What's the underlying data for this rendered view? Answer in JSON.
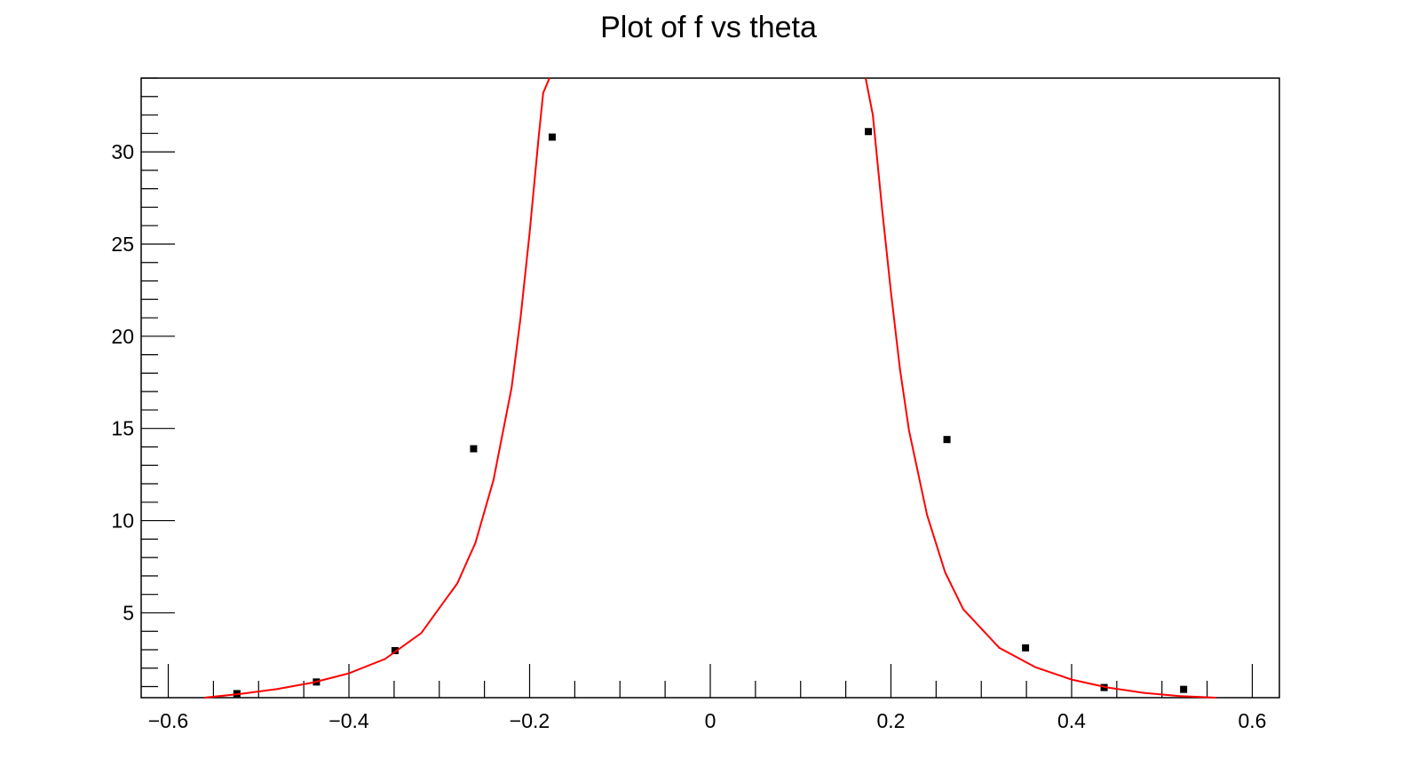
{
  "chart_data": {
    "type": "scatter",
    "title": "Plot of f vs theta",
    "xlabel": "",
    "ylabel": "",
    "xlim": [
      -0.63,
      0.63
    ],
    "ylim": [
      0.4,
      34.0
    ],
    "grid": false,
    "legend": "none",
    "x_ticks": [
      {
        "value": -0.6,
        "label": "−0.6"
      },
      {
        "value": -0.4,
        "label": "−0.4"
      },
      {
        "value": -0.2,
        "label": "−0.2"
      },
      {
        "value": 0,
        "label": "0"
      },
      {
        "value": 0.2,
        "label": "0.2"
      },
      {
        "value": 0.4,
        "label": "0.4"
      },
      {
        "value": 0.6,
        "label": "0.6"
      }
    ],
    "y_ticks": [
      {
        "value": 5,
        "label": "5"
      },
      {
        "value": 10,
        "label": "10"
      },
      {
        "value": 15,
        "label": "15"
      },
      {
        "value": 20,
        "label": "20"
      },
      {
        "value": 25,
        "label": "25"
      },
      {
        "value": 30,
        "label": "30"
      }
    ],
    "series": [
      {
        "kind": "points",
        "color": "#000000",
        "x": [
          -0.524,
          -0.436,
          -0.349,
          -0.262,
          -0.175,
          0.175,
          0.262,
          0.349,
          0.436,
          0.524
        ],
        "y": [
          0.62,
          1.25,
          2.95,
          13.9,
          30.8,
          31.1,
          14.4,
          3.1,
          0.95,
          0.85
        ]
      },
      {
        "kind": "fit-curve",
        "color": "#ff0000",
        "x": [
          -0.56,
          -0.52,
          -0.48,
          -0.44,
          -0.4,
          -0.36,
          -0.32,
          -0.28,
          -0.26,
          -0.24,
          -0.22,
          -0.21,
          -0.2,
          -0.19,
          -0.185,
          -0.178,
          0.172,
          0.18,
          0.19,
          0.2,
          0.21,
          0.22,
          0.24,
          0.26,
          0.28,
          0.32,
          0.36,
          0.4,
          0.44,
          0.48,
          0.52,
          0.56
        ],
        "y": [
          0.4,
          0.6,
          0.86,
          1.22,
          1.72,
          2.5,
          3.9,
          6.6,
          8.8,
          12.2,
          17.2,
          21.0,
          25.6,
          30.8,
          33.2,
          34.0,
          34.0,
          32.0,
          27.0,
          22.4,
          18.2,
          14.9,
          10.3,
          7.2,
          5.2,
          3.1,
          2.05,
          1.38,
          0.95,
          0.66,
          0.48,
          0.4
        ]
      }
    ]
  }
}
